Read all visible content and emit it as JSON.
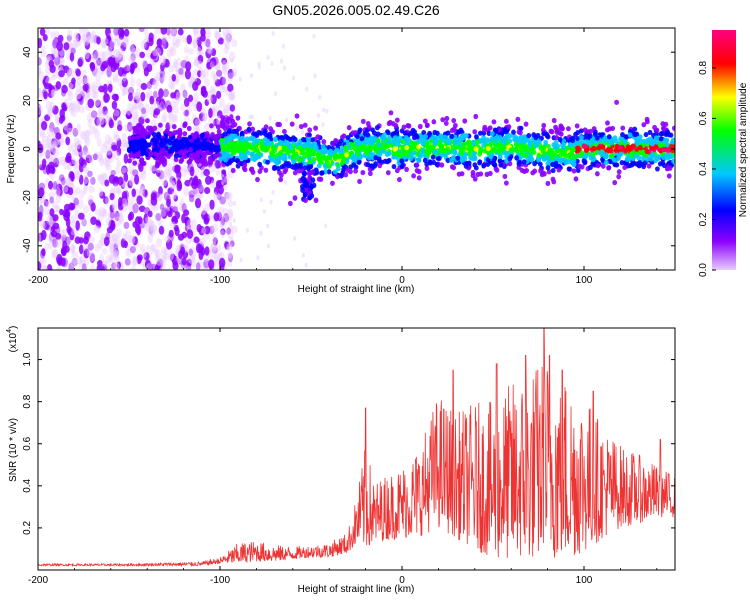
{
  "title": "GN05.2026.005.02.49.C26",
  "chart_data": [
    {
      "type": "heatmap",
      "title": "GN05.2026.005.02.49.C26",
      "xlabel": "Height of straight line (km)",
      "ylabel": "Frequency (Hz)",
      "xlim": [
        -200,
        150
      ],
      "ylim": [
        -50,
        50
      ],
      "x_ticks": [
        -200,
        -100,
        0,
        100
      ],
      "y_ticks": [
        -40,
        -20,
        0,
        20,
        40
      ],
      "x_tick_labels": [
        "-200",
        "-100",
        "0",
        "100"
      ],
      "y_tick_labels": [
        "-40",
        "-20",
        "0",
        "20",
        "40"
      ],
      "colorbar": {
        "label": "Normalized spectral amplitude",
        "range": [
          0,
          0.95
        ],
        "ticks": [
          0.0,
          0.2,
          0.4,
          0.6,
          0.8
        ],
        "tick_labels": [
          "0.0",
          "0.2",
          "0.4",
          "0.6",
          "0.8"
        ],
        "colors": [
          "#e8ccff",
          "#8b00ff",
          "#0000ff",
          "#00c8ff",
          "#00ff00",
          "#ffff00",
          "#ff0000",
          "#ff0080"
        ]
      },
      "noise_region_x": [
        -200,
        -100
      ],
      "ridge_center_hz": [
        [
          -150,
          2
        ],
        [
          -120,
          2
        ],
        [
          -100,
          1
        ],
        [
          -80,
          0
        ],
        [
          -60,
          -1
        ],
        [
          -50,
          -2
        ],
        [
          -40,
          -5
        ],
        [
          -35,
          -4
        ],
        [
          -25,
          0
        ],
        [
          -10,
          1
        ],
        [
          0,
          0
        ],
        [
          20,
          1
        ],
        [
          40,
          0
        ],
        [
          60,
          1
        ],
        [
          80,
          -1
        ],
        [
          90,
          -2
        ],
        [
          100,
          0
        ],
        [
          120,
          0
        ],
        [
          150,
          0
        ]
      ]
    },
    {
      "type": "line",
      "xlabel": "Height of straight line (km)",
      "ylabel": "SNR (10 * v/v)",
      "y_scale_label": "(x10",
      "y_scale_exp": "4",
      "y_scale_close": ")",
      "xlim": [
        -200,
        150
      ],
      "ylim": [
        0,
        1.15
      ],
      "x_ticks": [
        -200,
        -100,
        0,
        100
      ],
      "y_ticks": [
        0.2,
        0.4,
        0.6,
        0.8,
        1.0
      ],
      "x_tick_labels": [
        "-200",
        "-100",
        "0",
        "100"
      ],
      "y_tick_labels": [
        "0.2",
        "0.4",
        "0.6",
        "0.8",
        "1.0"
      ],
      "color": "#ee3333",
      "envelope": [
        [
          -200,
          0.02,
          0.03
        ],
        [
          -150,
          0.02,
          0.03
        ],
        [
          -110,
          0.02,
          0.04
        ],
        [
          -100,
          0.03,
          0.06
        ],
        [
          -90,
          0.03,
          0.13
        ],
        [
          -80,
          0.04,
          0.14
        ],
        [
          -70,
          0.04,
          0.12
        ],
        [
          -60,
          0.05,
          0.11
        ],
        [
          -50,
          0.06,
          0.12
        ],
        [
          -40,
          0.06,
          0.13
        ],
        [
          -30,
          0.08,
          0.18
        ],
        [
          -25,
          0.12,
          0.35
        ],
        [
          -20,
          0.1,
          0.6
        ],
        [
          -15,
          0.12,
          0.42
        ],
        [
          -10,
          0.14,
          0.45
        ],
        [
          0,
          0.15,
          0.5
        ],
        [
          10,
          0.16,
          0.6
        ],
        [
          20,
          0.2,
          0.85
        ],
        [
          30,
          0.15,
          0.75
        ],
        [
          40,
          0.1,
          0.8
        ],
        [
          50,
          0.05,
          0.8
        ],
        [
          60,
          0.05,
          0.9
        ],
        [
          70,
          0.05,
          0.95
        ],
        [
          80,
          0.05,
          1.05
        ],
        [
          90,
          0.05,
          0.95
        ],
        [
          100,
          0.08,
          0.85
        ],
        [
          110,
          0.15,
          0.7
        ],
        [
          120,
          0.2,
          0.6
        ],
        [
          130,
          0.22,
          0.55
        ],
        [
          140,
          0.25,
          0.5
        ],
        [
          150,
          0.25,
          0.45
        ]
      ],
      "spikes": [
        [
          -20,
          0.77
        ],
        [
          28,
          0.95
        ],
        [
          52,
          0.98
        ],
        [
          68,
          1.02
        ],
        [
          78,
          1.15
        ],
        [
          81,
          1.02
        ],
        [
          88,
          0.95
        ],
        [
          105,
          0.85
        ],
        [
          142,
          0.62
        ]
      ]
    }
  ]
}
